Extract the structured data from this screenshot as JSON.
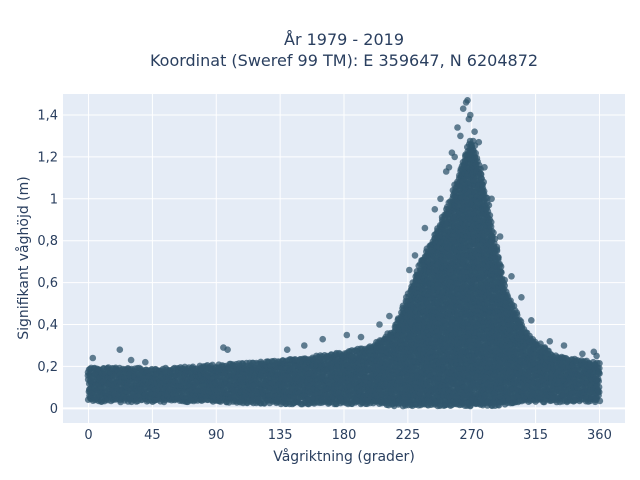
{
  "chart_data": {
    "type": "scatter",
    "title_line1": "År 1979 - 2019",
    "title_line2": "Koordinat (Sweref 99 TM): E 359647, N 6204872",
    "xlabel": "Vågriktning (grader)",
    "ylabel": "Signifikant våghöjd (m)",
    "xlim": [
      -18,
      378
    ],
    "ylim": [
      -0.07,
      1.5
    ],
    "xticks": [
      0,
      45,
      90,
      135,
      180,
      225,
      270,
      315,
      360
    ],
    "xtick_labels": [
      "0",
      "45",
      "90",
      "135",
      "180",
      "225",
      "270",
      "315",
      "360"
    ],
    "yticks": [
      0,
      0.2,
      0.4,
      0.6,
      0.8,
      1.0,
      1.2,
      1.4
    ],
    "ytick_labels": [
      "0",
      "0,2",
      "0,4",
      "0,6",
      "0,8",
      "1",
      "1,2",
      "1,4"
    ],
    "grid": true,
    "marker_color": "#30566c",
    "plot_background": "#e5ecf6",
    "envelope": {
      "x": [
        0,
        20,
        45,
        90,
        135,
        180,
        200,
        215,
        225,
        235,
        245,
        255,
        262,
        270,
        278,
        285,
        295,
        310,
        330,
        360
      ],
      "y_low": [
        0.03,
        0.03,
        0.03,
        0.03,
        0.02,
        0.02,
        0.02,
        0.01,
        0.01,
        0.01,
        0.01,
        0.01,
        0.01,
        0.01,
        0.01,
        0.01,
        0.02,
        0.03,
        0.03,
        0.03
      ],
      "y_high": [
        0.2,
        0.2,
        0.19,
        0.21,
        0.23,
        0.27,
        0.3,
        0.38,
        0.55,
        0.72,
        0.85,
        1.0,
        1.15,
        1.3,
        1.1,
        0.85,
        0.55,
        0.35,
        0.25,
        0.22
      ]
    },
    "outliers": [
      {
        "x": 3,
        "y": 0.24
      },
      {
        "x": 22,
        "y": 0.28
      },
      {
        "x": 30,
        "y": 0.23
      },
      {
        "x": 40,
        "y": 0.22
      },
      {
        "x": 95,
        "y": 0.29
      },
      {
        "x": 98,
        "y": 0.28
      },
      {
        "x": 140,
        "y": 0.28
      },
      {
        "x": 152,
        "y": 0.3
      },
      {
        "x": 165,
        "y": 0.33
      },
      {
        "x": 182,
        "y": 0.35
      },
      {
        "x": 192,
        "y": 0.34
      },
      {
        "x": 205,
        "y": 0.4
      },
      {
        "x": 212,
        "y": 0.44
      },
      {
        "x": 226,
        "y": 0.66
      },
      {
        "x": 230,
        "y": 0.73
      },
      {
        "x": 237,
        "y": 0.86
      },
      {
        "x": 244,
        "y": 0.95
      },
      {
        "x": 248,
        "y": 1.0
      },
      {
        "x": 252,
        "y": 1.13
      },
      {
        "x": 254,
        "y": 1.15
      },
      {
        "x": 256,
        "y": 1.22
      },
      {
        "x": 258,
        "y": 1.2
      },
      {
        "x": 260,
        "y": 1.34
      },
      {
        "x": 262,
        "y": 1.3
      },
      {
        "x": 264,
        "y": 1.43
      },
      {
        "x": 266,
        "y": 1.46
      },
      {
        "x": 267,
        "y": 1.47
      },
      {
        "x": 268,
        "y": 1.38
      },
      {
        "x": 269,
        "y": 1.4
      },
      {
        "x": 272,
        "y": 1.32
      },
      {
        "x": 275,
        "y": 1.27
      },
      {
        "x": 279,
        "y": 1.15
      },
      {
        "x": 284,
        "y": 1.0
      },
      {
        "x": 290,
        "y": 0.82
      },
      {
        "x": 298,
        "y": 0.63
      },
      {
        "x": 305,
        "y": 0.53
      },
      {
        "x": 312,
        "y": 0.42
      },
      {
        "x": 325,
        "y": 0.32
      },
      {
        "x": 335,
        "y": 0.3
      },
      {
        "x": 348,
        "y": 0.26
      },
      {
        "x": 356,
        "y": 0.27
      },
      {
        "x": 358,
        "y": 0.25
      }
    ]
  }
}
